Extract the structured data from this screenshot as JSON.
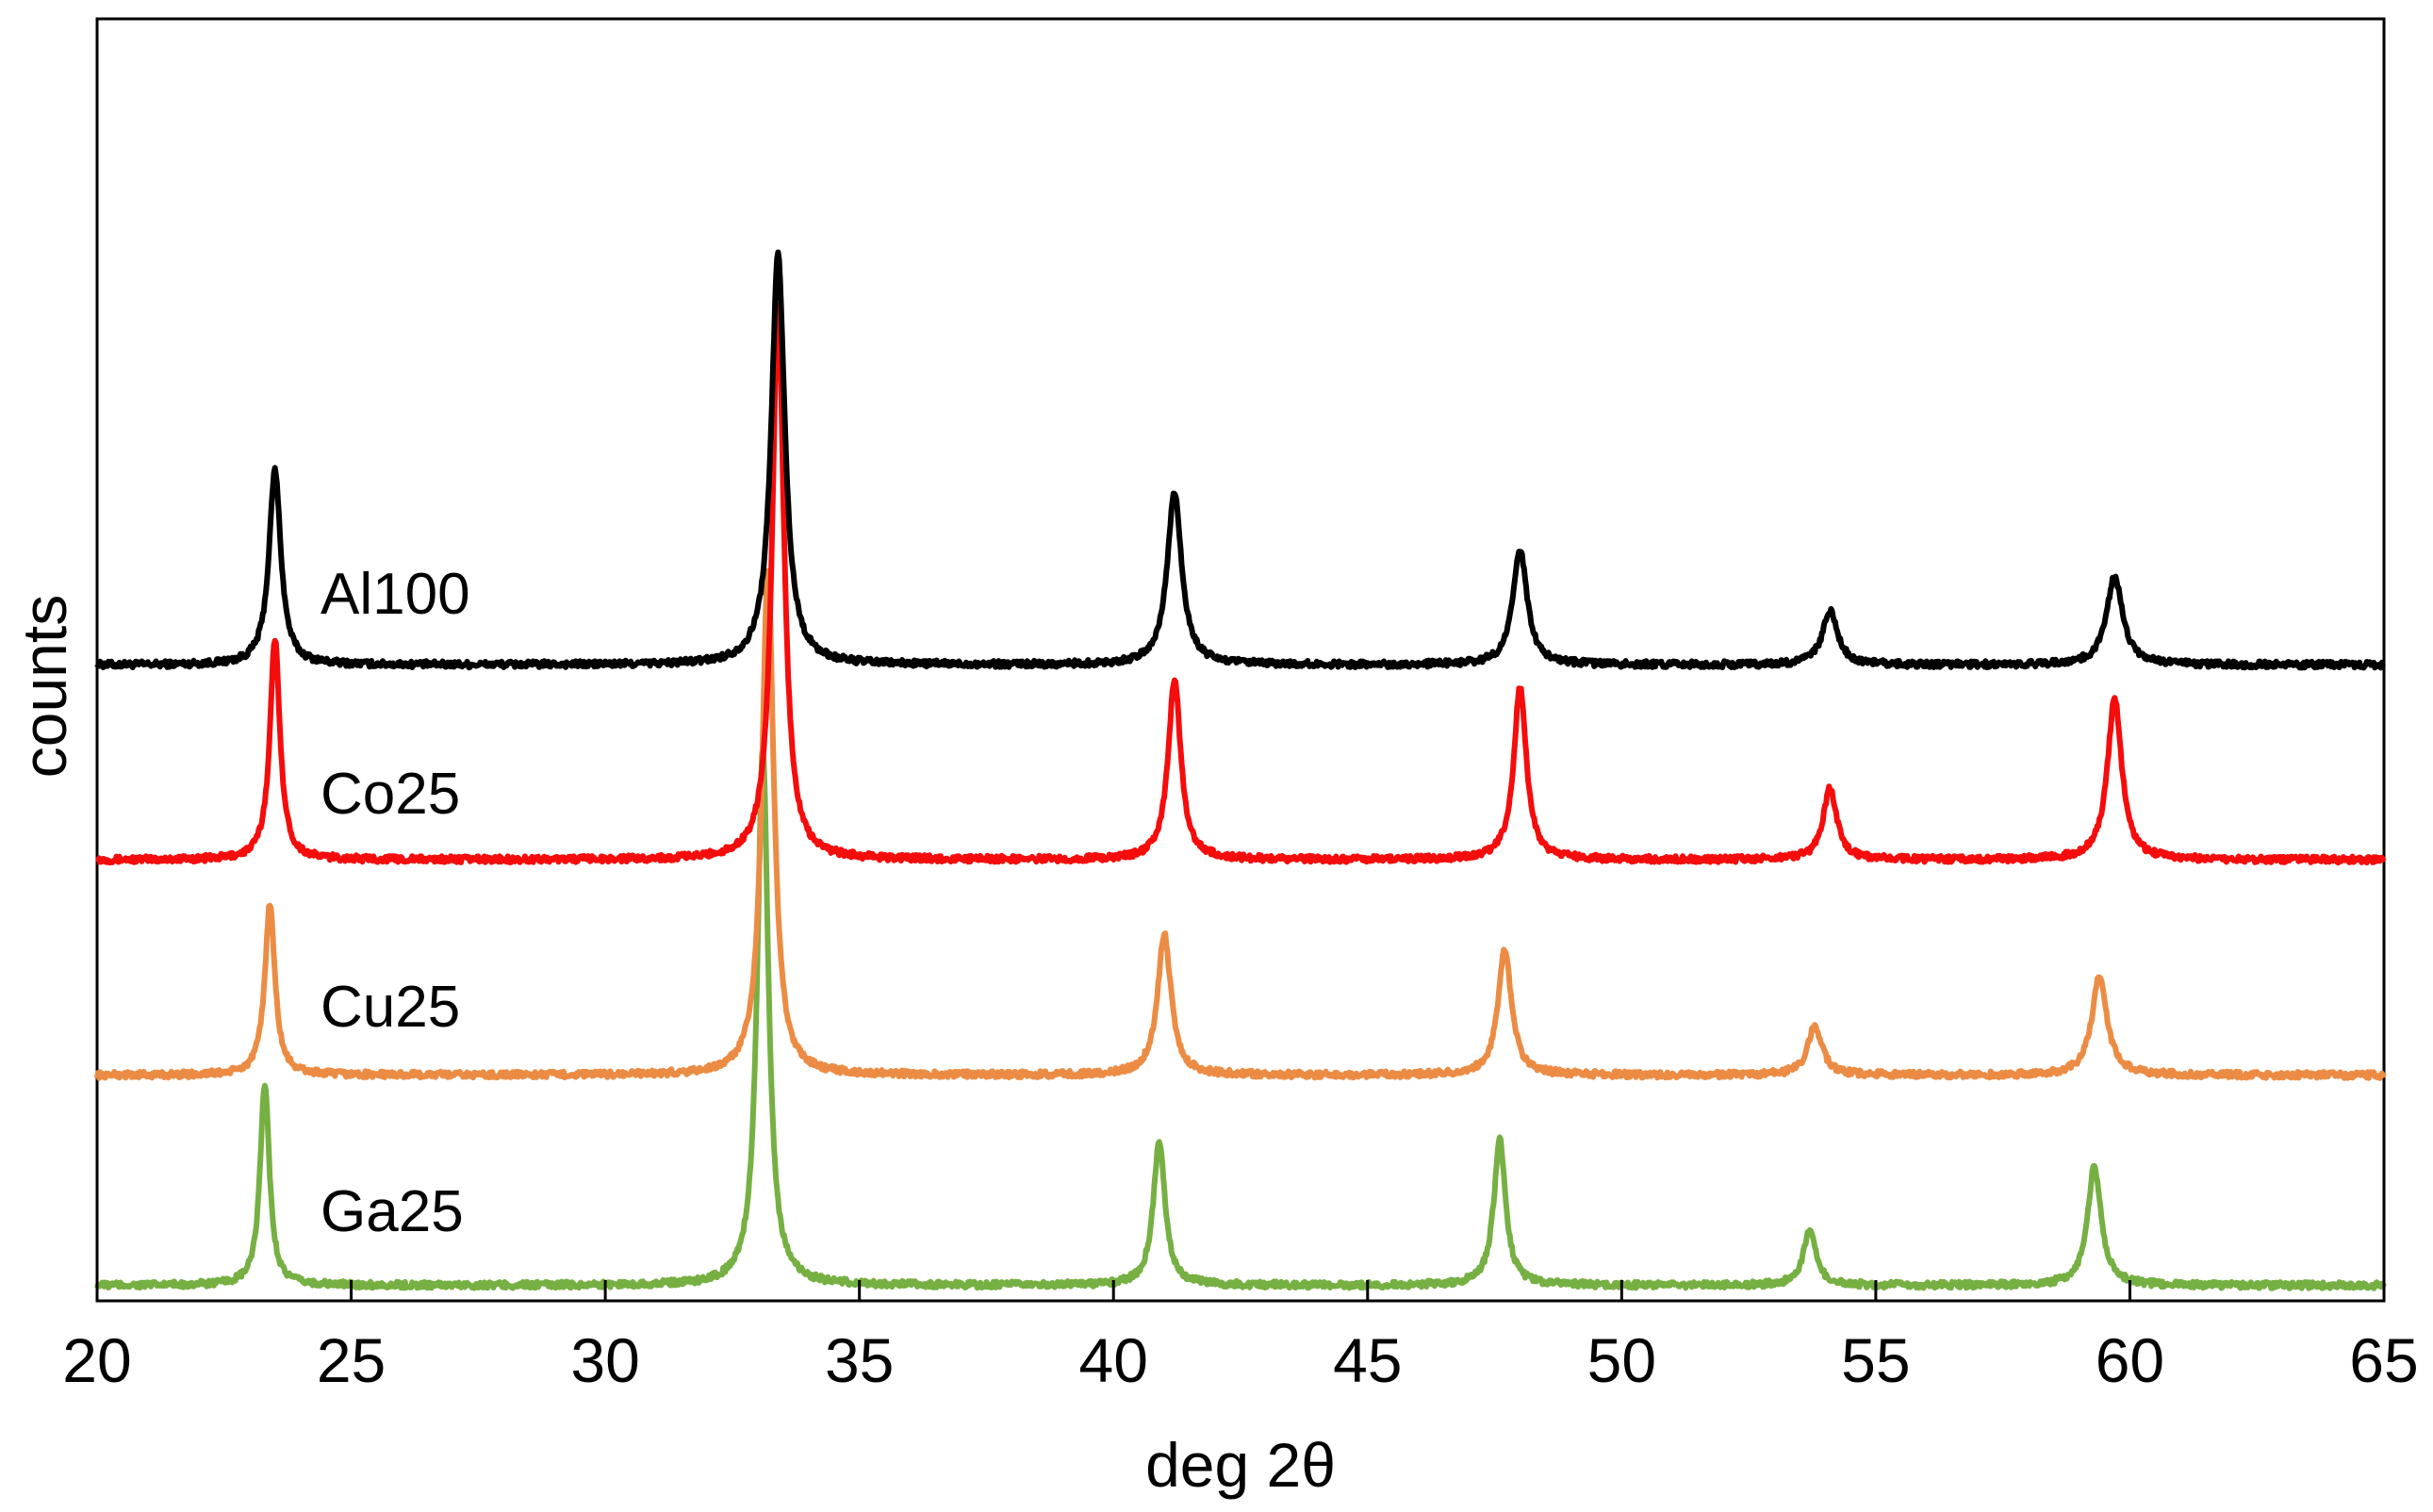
{
  "chart_data": {
    "type": "line",
    "title": "",
    "xlabel": "deg 2θ",
    "ylabel": "counts",
    "xlim": [
      20,
      65
    ],
    "ylim": [
      0,
      100
    ],
    "xticks": [
      "20",
      "25",
      "30",
      "35",
      "40",
      "45",
      "50",
      "55",
      "60",
      "65"
    ],
    "yticks": [],
    "grid": false,
    "legend": "inline labels",
    "series": [
      {
        "name": "Al100",
        "color": "#000000",
        "baseline": 49.6,
        "peaks": [
          {
            "x": 23.5,
            "height": 15.2,
            "width": 0.14
          },
          {
            "x": 33.4,
            "height": 32.1,
            "width": 0.16
          },
          {
            "x": 41.2,
            "height": 13.5,
            "width": 0.17
          },
          {
            "x": 48.0,
            "height": 8.9,
            "width": 0.17
          },
          {
            "x": 54.1,
            "height": 4.2,
            "width": 0.18
          },
          {
            "x": 59.7,
            "height": 6.9,
            "width": 0.19
          }
        ]
      },
      {
        "name": "Co25",
        "color": "#f50c0c",
        "baseline": 34.4,
        "peaks": [
          {
            "x": 23.5,
            "height": 17.2,
            "width": 0.12
          },
          {
            "x": 33.4,
            "height": 43.5,
            "width": 0.14
          },
          {
            "x": 41.2,
            "height": 14.0,
            "width": 0.15
          },
          {
            "x": 48.0,
            "height": 13.5,
            "width": 0.15
          },
          {
            "x": 54.1,
            "height": 5.6,
            "width": 0.16
          },
          {
            "x": 59.7,
            "height": 12.6,
            "width": 0.17
          }
        ]
      },
      {
        "name": "Cu25",
        "color": "#ec8c44",
        "baseline": 17.6,
        "peaks": [
          {
            "x": 23.4,
            "height": 13.3,
            "width": 0.12
          },
          {
            "x": 33.2,
            "height": 39.5,
            "width": 0.14
          },
          {
            "x": 41.0,
            "height": 11.0,
            "width": 0.16
          },
          {
            "x": 47.7,
            "height": 9.7,
            "width": 0.16
          },
          {
            "x": 53.8,
            "height": 3.8,
            "width": 0.17
          },
          {
            "x": 59.4,
            "height": 7.8,
            "width": 0.18
          }
        ]
      },
      {
        "name": "Ga25",
        "color": "#76b043",
        "baseline": 1.2,
        "peaks": [
          {
            "x": 23.3,
            "height": 15.8,
            "width": 0.11
          },
          {
            "x": 33.1,
            "height": 42.1,
            "width": 0.13
          },
          {
            "x": 40.9,
            "height": 11.2,
            "width": 0.14
          },
          {
            "x": 47.6,
            "height": 11.4,
            "width": 0.14
          },
          {
            "x": 53.7,
            "height": 4.3,
            "width": 0.15
          },
          {
            "x": 59.3,
            "height": 9.3,
            "width": 0.16
          }
        ]
      }
    ]
  }
}
